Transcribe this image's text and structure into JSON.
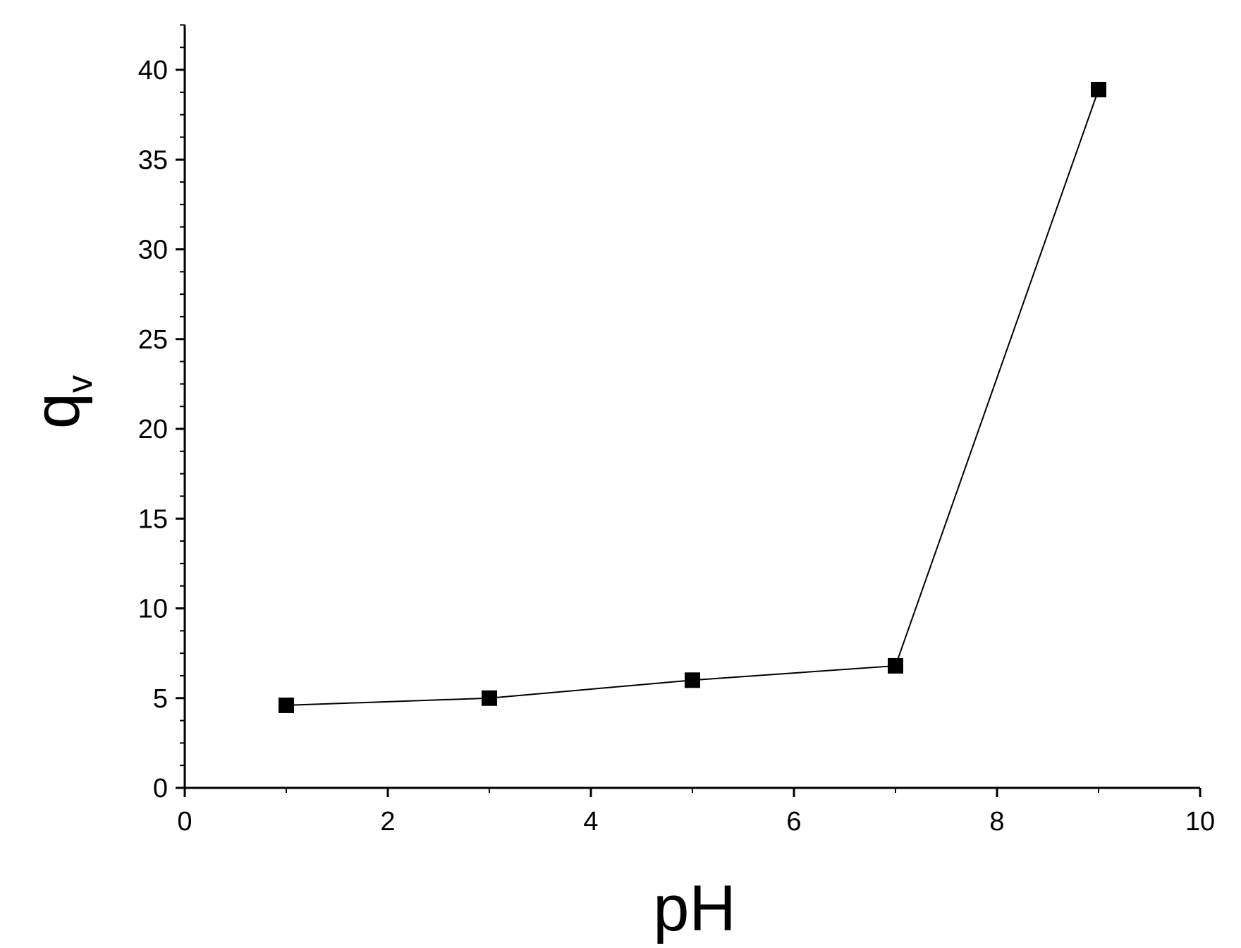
{
  "chart_data": {
    "type": "line",
    "title": "",
    "xlabel": "pH",
    "ylabel": "q",
    "ylabel_subscript": "v",
    "xlim": [
      0,
      10
    ],
    "ylim": [
      0,
      42.5
    ],
    "x_ticks": [
      0,
      2,
      4,
      6,
      8,
      10
    ],
    "y_ticks": [
      0,
      5,
      10,
      15,
      20,
      25,
      30,
      35,
      40
    ],
    "grid": false,
    "legend": "none",
    "marker": "filled-square",
    "line_color": "#000000",
    "series": [
      {
        "x": [
          1,
          3,
          5,
          7,
          9
        ],
        "y": [
          4.6,
          5.0,
          6.0,
          6.8,
          38.9
        ]
      }
    ]
  }
}
